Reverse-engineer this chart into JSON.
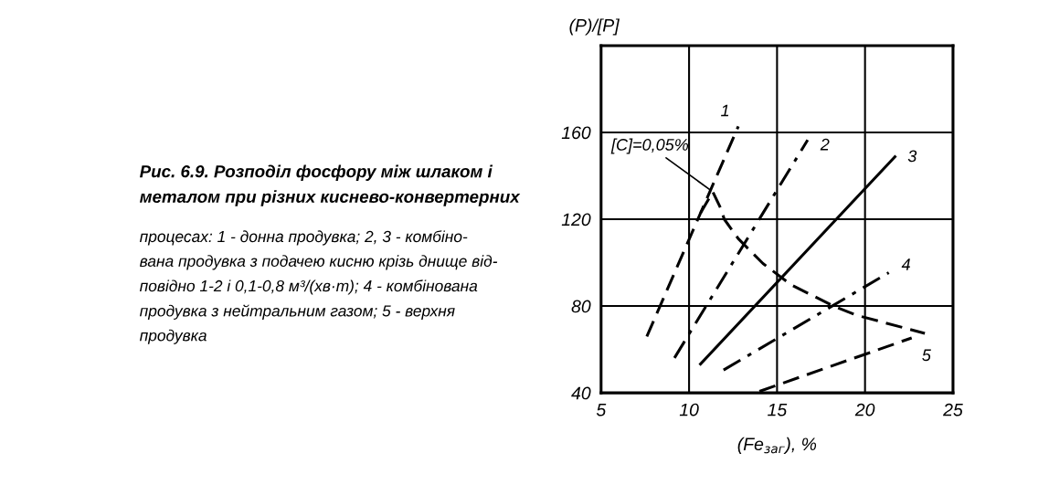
{
  "chart_data": {
    "type": "line",
    "title": "Рис. 6.9. Розподіл фосфору між шлаком і\nметалом при різних киснево-конвертерних",
    "annotations": [
      "процесах: 1 - донна продувка; 2, 3 - комбіно-\nвана продувка з подачею кисню крізь днище від-\nповідно 1-2 і 0,1-0,8 м³/(хв·т); 4 - комбінована\nпродувка з нейтральним газом; 5 - верхня\nпродувка",
      {
        "text": "[C]=0,05%",
        "x": 11.35,
        "y": 132.6
      }
    ],
    "xlabel": "(Fe$_{заг}$), %",
    "ylabel": "(P)/[P]",
    "xlim": [
      5,
      25
    ],
    "xticks": [
      5,
      10,
      15,
      20,
      25
    ],
    "ylim": [
      40,
      200
    ],
    "yticks": [
      40,
      80,
      120,
      160
    ],
    "grid": true,
    "legend": false,
    "marker": "none",
    "series": [
      {
        "name": "1",
        "color": "#000000",
        "line_style": "dashed",
        "x": [
          7.6,
          12.8
        ],
        "values": [
          66,
          162.8
        ]
      },
      {
        "name": "2",
        "color": "#000000",
        "line_style": "dashdot",
        "x": [
          9.17,
          16.74
        ],
        "values": [
          56.1,
          156.5
        ]
      },
      {
        "name": "3",
        "color": "#000000",
        "line_style": "solid",
        "x": [
          10.65,
          21.7
        ],
        "values": [
          53.3,
          148.8
        ]
      },
      {
        "name": "4",
        "color": "#000000",
        "line_style": "dashdot",
        "x": [
          11.96,
          21.35
        ],
        "values": [
          50.5,
          95.4
        ]
      },
      {
        "name": "5",
        "color": "#000000",
        "line_style": "dashed",
        "x": [
          14.0,
          22.65
        ],
        "values": [
          40.7,
          65.3
        ]
      },
      {
        "color": "#000000",
        "line_style": "dashed",
        "x": [
          10.65,
          11.35,
          11.8,
          12.0,
          12.8,
          14.2,
          15.8,
          18.2,
          19.5,
          23.4
        ],
        "values": [
          122.8,
          132.6,
          125,
          120,
          111,
          99.6,
          89.8,
          80,
          75.8,
          67.4
        ]
      }
    ]
  }
}
